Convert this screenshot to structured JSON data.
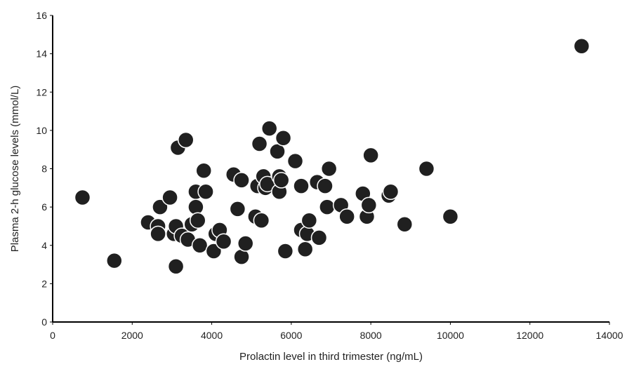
{
  "chart_data": {
    "type": "scatter",
    "title": "",
    "xlabel": "Prolactin level in third trimester (ng/mL)",
    "ylabel": "Plasma 2-h glucose levels  (mmol/L)",
    "xlim": [
      0,
      14000
    ],
    "ylim": [
      0,
      16
    ],
    "x_ticks": [
      0,
      2000,
      4000,
      6000,
      8000,
      10000,
      12000,
      14000
    ],
    "y_ticks": [
      0,
      2,
      4,
      6,
      8,
      10,
      12,
      14,
      16
    ],
    "grid": false,
    "legend": "none",
    "marker_color": "#202020",
    "series": [
      {
        "points": [
          [
            750,
            6.5
          ],
          [
            1550,
            3.2
          ],
          [
            2400,
            5.2
          ],
          [
            2650,
            5.0
          ],
          [
            2650,
            4.6
          ],
          [
            2700,
            6.0
          ],
          [
            2950,
            6.5
          ],
          [
            3050,
            4.6
          ],
          [
            3100,
            5.0
          ],
          [
            3100,
            2.9
          ],
          [
            3150,
            9.1
          ],
          [
            3250,
            4.5
          ],
          [
            3350,
            9.5
          ],
          [
            3400,
            4.3
          ],
          [
            3500,
            5.1
          ],
          [
            3600,
            6.8
          ],
          [
            3600,
            6.0
          ],
          [
            3650,
            5.3
          ],
          [
            3700,
            4.0
          ],
          [
            3800,
            7.9
          ],
          [
            3850,
            6.8
          ],
          [
            4050,
            3.7
          ],
          [
            4100,
            4.6
          ],
          [
            4200,
            4.8
          ],
          [
            4300,
            4.2
          ],
          [
            4550,
            7.7
          ],
          [
            4650,
            5.9
          ],
          [
            4750,
            7.4
          ],
          [
            4750,
            3.4
          ],
          [
            4850,
            4.1
          ],
          [
            5100,
            5.5
          ],
          [
            5150,
            7.1
          ],
          [
            5200,
            9.3
          ],
          [
            5250,
            5.3
          ],
          [
            5300,
            7.6
          ],
          [
            5350,
            7.0
          ],
          [
            5400,
            7.2
          ],
          [
            5450,
            10.1
          ],
          [
            5650,
            8.9
          ],
          [
            5700,
            7.6
          ],
          [
            5700,
            6.8
          ],
          [
            5750,
            7.4
          ],
          [
            5800,
            9.6
          ],
          [
            5850,
            3.7
          ],
          [
            6100,
            8.4
          ],
          [
            6250,
            4.8
          ],
          [
            6250,
            7.1
          ],
          [
            6350,
            3.8
          ],
          [
            6400,
            4.6
          ],
          [
            6450,
            5.3
          ],
          [
            6650,
            7.3
          ],
          [
            6700,
            4.4
          ],
          [
            6850,
            7.1
          ],
          [
            6900,
            6.0
          ],
          [
            6950,
            8.0
          ],
          [
            7250,
            6.1
          ],
          [
            7400,
            5.5
          ],
          [
            7800,
            6.7
          ],
          [
            7900,
            5.5
          ],
          [
            7950,
            6.1
          ],
          [
            8000,
            8.7
          ],
          [
            8450,
            6.6
          ],
          [
            8500,
            6.8
          ],
          [
            8850,
            5.1
          ],
          [
            9400,
            8.0
          ],
          [
            10000,
            5.5
          ],
          [
            13300,
            14.4
          ]
        ]
      }
    ]
  }
}
